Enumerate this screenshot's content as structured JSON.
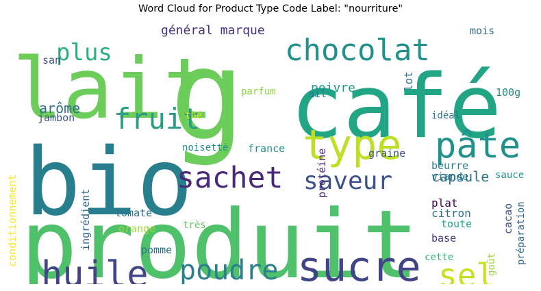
{
  "chart_data": {
    "type": "wordcloud",
    "title": "Word Cloud for Product Type Code Label: \"nourriture\"",
    "words": [
      {
        "text": "produit",
        "color": "#4fc16a"
      },
      {
        "text": "lait",
        "color": "#6ccd5a"
      },
      {
        "text": "g",
        "color": "#6ccd5a"
      },
      {
        "text": "café",
        "color": "#21a585"
      },
      {
        "text": "bio",
        "color": "#277f8e"
      },
      {
        "text": "type",
        "color": "#bddf26"
      },
      {
        "text": "sucre",
        "color": "#414487"
      },
      {
        "text": "huile",
        "color": "#414487"
      },
      {
        "text": "chocolat",
        "color": "#21918c"
      },
      {
        "text": "pâte",
        "color": "#21918c"
      },
      {
        "text": "fruit",
        "color": "#2a9d84"
      },
      {
        "text": "sachet",
        "color": "#482878"
      },
      {
        "text": "poudre",
        "color": "#2c7f8e"
      },
      {
        "text": "saveur",
        "color": "#3b528b"
      },
      {
        "text": "sel",
        "color": "#c7e020"
      },
      {
        "text": "plus",
        "color": "#2ab07f"
      },
      {
        "text": "général",
        "color": "#46337e"
      },
      {
        "text": "marque",
        "color": "#46337e"
      },
      {
        "text": "arôme",
        "color": "#2e6f8e"
      },
      {
        "text": "capsule",
        "color": "#2c728e"
      },
      {
        "text": "poivre",
        "color": "#1e9b8a"
      },
      {
        "text": "lot",
        "color": "#2e6e8e"
      },
      {
        "text": "parfum",
        "color": "#8ed645"
      },
      {
        "text": "ail",
        "color": "#2a788e"
      },
      {
        "text": "100g",
        "color": "#25858e"
      },
      {
        "text": "mois",
        "color": "#31688e"
      },
      {
        "text": "san",
        "color": "#3b528b"
      },
      {
        "text": "jambon",
        "color": "#3b528b"
      },
      {
        "text": "thé",
        "color": "#d0e11c"
      },
      {
        "text": "noisette",
        "color": "#21918c"
      },
      {
        "text": "france",
        "color": "#21918c"
      },
      {
        "text": "idéal",
        "color": "#2c728e"
      },
      {
        "text": "graine",
        "color": "#3b528b"
      },
      {
        "text": "beurre",
        "color": "#2a788e"
      },
      {
        "text": "viande",
        "color": "#2a788e"
      },
      {
        "text": "sauce",
        "color": "#21918c"
      },
      {
        "text": "protéine",
        "color": "#482878"
      },
      {
        "text": "conditionnement",
        "color": "#fde725"
      },
      {
        "text": "ingrédient",
        "color": "#31688e"
      },
      {
        "text": "tomate",
        "color": "#2c728e"
      },
      {
        "text": "orange",
        "color": "#a0da39"
      },
      {
        "text": "très",
        "color": "#5ec962"
      },
      {
        "text": "pomme",
        "color": "#2c728e"
      },
      {
        "text": "plat",
        "color": "#440154"
      },
      {
        "text": "citron",
        "color": "#2c728e"
      },
      {
        "text": "cacao",
        "color": "#3b528b"
      },
      {
        "text": "toute",
        "color": "#21a585"
      },
      {
        "text": "préparation",
        "color": "#31688e"
      },
      {
        "text": "base",
        "color": "#46337e"
      },
      {
        "text": "cette",
        "color": "#35b779"
      },
      {
        "text": "goût",
        "color": "#9bd93c"
      }
    ]
  }
}
